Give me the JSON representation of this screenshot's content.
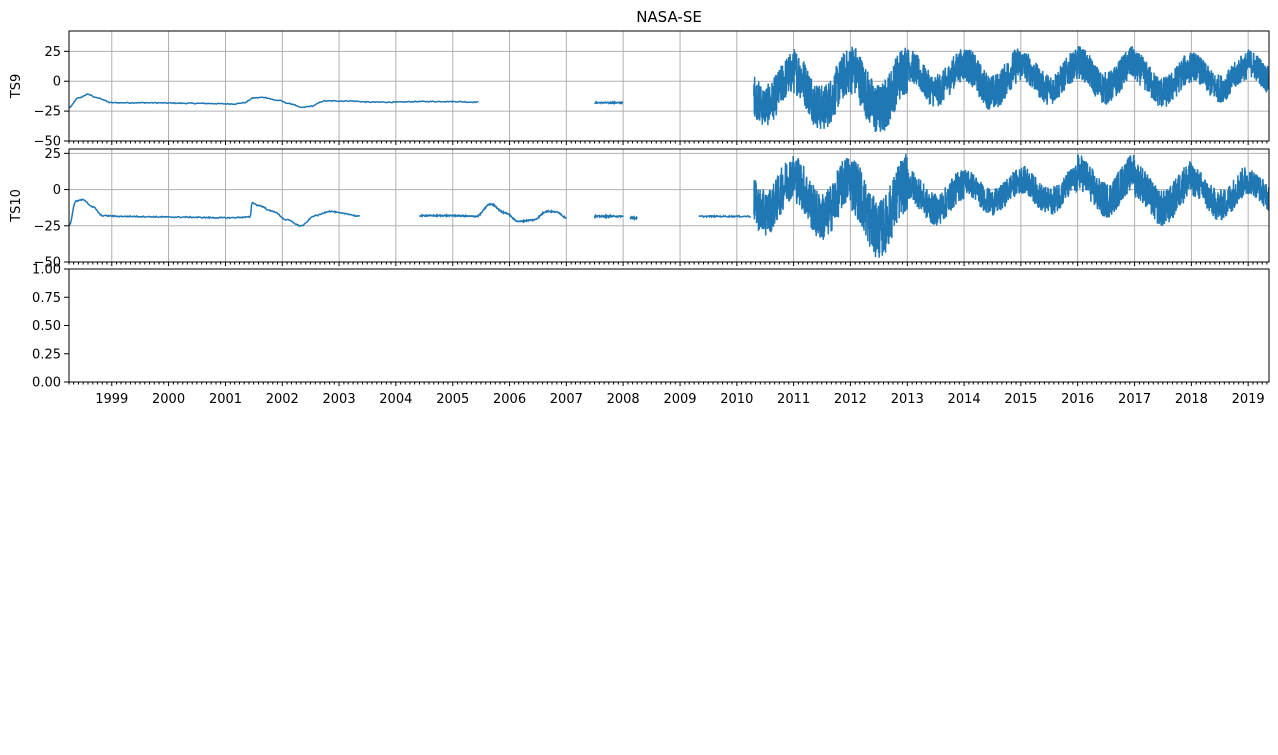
{
  "chart_data": [
    {
      "type": "line",
      "title": "NASA-SE",
      "ylabel": "TS9",
      "ylim": [
        -50,
        42
      ],
      "yticks": [
        -50,
        -25,
        0,
        25
      ],
      "ytick_labels": [
        "−50",
        "−25",
        "0",
        "25"
      ],
      "grid": true,
      "color": "#1f77b4",
      "xlim": [
        "1998-04-01",
        "2019-05-15"
      ],
      "segments": [
        {
          "start": "1998-04-01",
          "end": "2005-06-15",
          "kind": "smooth",
          "x": [
            "1998-04-01",
            "1998-06-01",
            "1998-08-01",
            "1998-10-01",
            "1999-01-01",
            "1999-07-01",
            "2000-07-01",
            "2001-03-01",
            "2001-05-01",
            "2001-07-01",
            "2001-09-01",
            "2001-12-01",
            "2002-03-01",
            "2002-05-01",
            "2002-07-01",
            "2002-10-01",
            "2003-03-01",
            "2003-08-01",
            "2004-01-01",
            "2004-06-01",
            "2004-12-01",
            "2005-06-15"
          ],
          "y": [
            -22,
            -14,
            -11,
            -14,
            -18,
            -18,
            -18.5,
            -19,
            -18,
            -14,
            -13.5,
            -16,
            -19,
            -22,
            -21,
            -16.5,
            -16.5,
            -17.5,
            -17.5,
            -17,
            -17,
            -17.5
          ]
        },
        {
          "start": "2007-07-01",
          "end": "2008-01-01",
          "kind": "flat",
          "mean": -18,
          "noise": 1
        },
        {
          "start": "2010-04-20",
          "end": "2019-05-15",
          "kind": "noisy",
          "annual": true,
          "yearly_peak": [
            25,
            28,
            33,
            28,
            30,
            27,
            30,
            25,
            25,
            27
          ],
          "yearly_trough": [
            -38,
            -42,
            -46,
            -22,
            -25,
            -20,
            -20,
            -23,
            -18,
            -15
          ]
        }
      ]
    },
    {
      "type": "line",
      "ylabel": "TS10",
      "ylim": [
        -50,
        28
      ],
      "yticks": [
        -50,
        -25,
        0,
        25
      ],
      "ytick_labels": [
        "−50",
        "−25",
        "0",
        "25"
      ],
      "grid": true,
      "color": "#1f77b4",
      "xlim": [
        "1998-04-01",
        "2019-05-15"
      ],
      "segments": [
        {
          "start": "1998-04-01",
          "end": "2003-05-15",
          "kind": "smooth",
          "x": [
            "1998-04-01",
            "1998-05-15",
            "1998-07-01",
            "1998-09-01",
            "1998-11-01",
            "1999-03-01",
            "2000-03-01",
            "2001-01-01",
            "2001-06-10",
            "2001-06-20",
            "2001-08-01",
            "2001-11-01",
            "2002-02-01",
            "2002-05-01",
            "2002-08-01",
            "2002-11-01",
            "2003-02-01",
            "2003-05-15"
          ],
          "y": [
            -25,
            -8,
            -7,
            -12,
            -18,
            -18.5,
            -19,
            -19.5,
            -19,
            -9,
            -11,
            -15,
            -21,
            -25,
            -18,
            -15,
            -16.5,
            -18.5
          ]
        },
        {
          "start": "2004-06-01",
          "end": "2007-01-01",
          "kind": "smooth",
          "x": [
            "2004-06-01",
            "2005-01-01",
            "2005-06-01",
            "2005-09-01",
            "2005-12-01",
            "2006-03-01",
            "2006-06-01",
            "2006-09-01",
            "2006-11-01",
            "2007-01-01"
          ],
          "y": [
            -18,
            -18,
            -18.5,
            -10,
            -16,
            -22,
            -21,
            -15,
            -15.5,
            -19.5
          ]
        },
        {
          "start": "2007-07-01",
          "end": "2008-01-01",
          "kind": "flat",
          "mean": -18.5,
          "noise": 1
        },
        {
          "start": "2008-02-15",
          "end": "2008-04-01",
          "kind": "flat",
          "mean": -19.5,
          "noise": 0.5
        },
        {
          "start": "2009-05-01",
          "end": "2010-04-01",
          "kind": "flat",
          "mean": -18.5,
          "noise": 1
        },
        {
          "start": "2010-04-20",
          "end": "2019-05-15",
          "kind": "noisy",
          "annual": true,
          "yearly_peak": [
            25,
            25,
            25,
            15,
            15,
            17,
            25,
            20,
            17,
            15
          ],
          "yearly_trough": [
            -32,
            -36,
            -48,
            -25,
            -18,
            -18,
            -20,
            -26,
            -22,
            -18
          ]
        }
      ]
    },
    {
      "type": "line",
      "ylim": [
        0,
        1
      ],
      "yticks": [
        0,
        0.25,
        0.5,
        0.75,
        1
      ],
      "ytick_labels": [
        "0.00",
        "0.25",
        "0.50",
        "0.75",
        "1.00"
      ],
      "grid": false,
      "xlim": [
        "1998-04-01",
        "2019-05-15"
      ],
      "xtick_labels": [
        "1999",
        "2000",
        "2001",
        "2002",
        "2003",
        "2004",
        "2005",
        "2006",
        "2007",
        "2008",
        "2009",
        "2010",
        "2011",
        "2012",
        "2013",
        "2014",
        "2015",
        "2016",
        "2017",
        "2018",
        "2019"
      ],
      "segments": []
    }
  ]
}
